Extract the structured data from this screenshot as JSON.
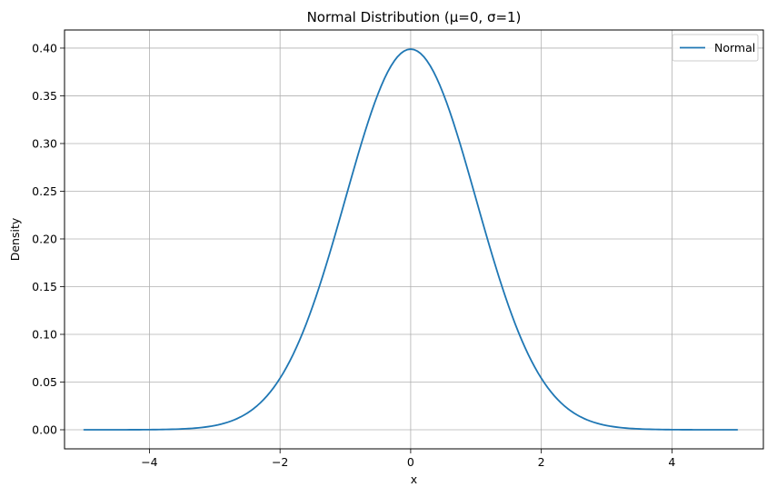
{
  "chart_data": {
    "type": "line",
    "title": "Normal Distribution (μ=0, σ=1)",
    "xlabel": "x",
    "ylabel": "Density",
    "xlim": [
      -5.3,
      5.4
    ],
    "ylim": [
      -0.02,
      0.419
    ],
    "x_ticks": [
      -4,
      -2,
      0,
      2,
      4
    ],
    "x_tick_labels": [
      "−4",
      "−2",
      "0",
      "2",
      "4"
    ],
    "y_ticks": [
      0.0,
      0.05,
      0.1,
      0.15,
      0.2,
      0.25,
      0.3,
      0.35,
      0.4
    ],
    "y_tick_labels": [
      "0.00",
      "0.05",
      "0.10",
      "0.15",
      "0.20",
      "0.25",
      "0.30",
      "0.35",
      "0.40"
    ],
    "grid": true,
    "legend_position": "top-right",
    "series": [
      {
        "name": "Normal",
        "color": "#1f77b4",
        "x": [
          -5.0,
          -4.5,
          -4.0,
          -3.5,
          -3.0,
          -2.5,
          -2.0,
          -1.75,
          -1.5,
          -1.25,
          -1.0,
          -0.75,
          -0.5,
          -0.25,
          0.0,
          0.25,
          0.5,
          0.75,
          1.0,
          1.25,
          1.5,
          1.75,
          2.0,
          2.5,
          3.0,
          3.5,
          4.0,
          4.5,
          5.0
        ],
        "y": [
          0.0,
          0.0,
          0.0001,
          0.0009,
          0.0044,
          0.0175,
          0.054,
          0.0863,
          0.1295,
          0.1826,
          0.242,
          0.3011,
          0.3521,
          0.3867,
          0.3989,
          0.3867,
          0.3521,
          0.3011,
          0.242,
          0.1826,
          0.1295,
          0.0863,
          0.054,
          0.0175,
          0.0044,
          0.0009,
          0.0001,
          0.0,
          0.0
        ]
      }
    ]
  }
}
